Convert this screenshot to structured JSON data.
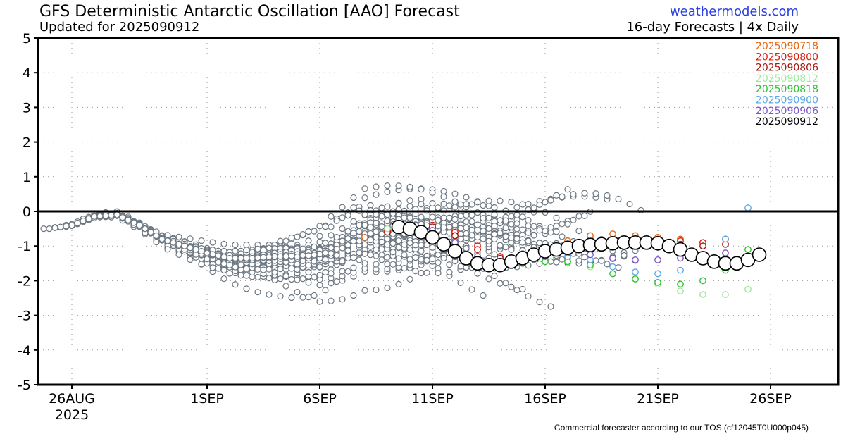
{
  "header": {
    "title": "GFS Deterministic Antarctic Oscillation [AAO] Forecast",
    "subtitle": "Updated for 2025090912",
    "site": "weathermodels.com",
    "cadence": "16-day Forecasts | 4x Daily"
  },
  "footer": "Commercial forecaster according to our TOS (cf12045T0U000p045)",
  "colors": {
    "older_runs": "#6b7680",
    "axis": "#000000",
    "grid": "#9a9a9a"
  },
  "chart_data": {
    "type": "line",
    "title": "GFS Deterministic Antarctic Oscillation [AAO] Forecast",
    "xlabel": "",
    "ylabel": "",
    "ylim": [
      -5,
      5
    ],
    "xlim": [
      "2025-08-24T12",
      "2025-09-29"
    ],
    "grid": true,
    "legend_position": "top-right",
    "y_ticks": [
      "5",
      "4",
      "3",
      "2",
      "1",
      "0",
      "-1",
      "-2",
      "-3",
      "-4",
      "-5"
    ],
    "x_ticks": [
      {
        "label": "26AUG",
        "date": "2025-08-26",
        "sub": "2025"
      },
      {
        "label": "1SEP",
        "date": "2025-09-01",
        "sub": ""
      },
      {
        "label": "6SEP",
        "date": "2025-09-06",
        "sub": ""
      },
      {
        "label": "11SEP",
        "date": "2025-09-11",
        "sub": ""
      },
      {
        "label": "16SEP",
        "date": "2025-09-16",
        "sub": ""
      },
      {
        "label": "21SEP",
        "date": "2025-09-21",
        "sub": ""
      },
      {
        "label": "26SEP",
        "date": "2025-09-26",
        "sub": ""
      }
    ],
    "background_runs_note": "earlier GFS runs drawn in gray",
    "series": [
      {
        "name": "2025090718",
        "color": "#e8650a",
        "x": [
          "2025-09-08",
          "2025-09-09",
          "2025-09-10",
          "2025-09-11",
          "2025-09-12",
          "2025-09-13",
          "2025-09-14",
          "2025-09-15",
          "2025-09-16",
          "2025-09-17",
          "2025-09-18",
          "2025-09-19",
          "2025-09-20",
          "2025-09-21",
          "2025-09-22",
          "2025-09-23"
        ],
        "values": [
          -0.75,
          -0.55,
          -0.5,
          -0.45,
          -0.7,
          -1.1,
          -1.35,
          -1.3,
          -1.1,
          -0.85,
          -0.7,
          -0.65,
          -0.7,
          -0.75,
          -0.8,
          -0.9
        ]
      },
      {
        "name": "2025090800",
        "color": "#dd1f0f",
        "x": [
          "2025-09-09",
          "2025-09-10",
          "2025-09-11",
          "2025-09-12",
          "2025-09-13",
          "2025-09-14",
          "2025-09-15",
          "2025-09-16",
          "2025-09-17",
          "2025-09-18",
          "2025-09-19",
          "2025-09-20",
          "2025-09-21",
          "2025-09-22",
          "2025-09-23",
          "2025-09-24"
        ],
        "values": [
          -0.55,
          -0.45,
          -0.4,
          -0.6,
          -1.0,
          -1.3,
          -1.35,
          -1.2,
          -1.0,
          -0.9,
          -0.85,
          -0.85,
          -0.8,
          -0.85,
          -0.9,
          -0.8
        ]
      },
      {
        "name": "2025090806",
        "color": "#a8150e",
        "x": [
          "2025-09-09",
          "2025-09-10",
          "2025-09-11",
          "2025-09-12",
          "2025-09-13",
          "2025-09-14",
          "2025-09-15",
          "2025-09-16",
          "2025-09-17",
          "2025-09-18",
          "2025-09-19",
          "2025-09-20",
          "2025-09-21",
          "2025-09-22",
          "2025-09-23",
          "2025-09-24"
        ],
        "values": [
          -0.6,
          -0.5,
          -0.45,
          -0.7,
          -1.1,
          -1.35,
          -1.4,
          -1.25,
          -1.05,
          -0.95,
          -0.9,
          -0.9,
          -0.9,
          -0.95,
          -1.0,
          -0.95
        ]
      },
      {
        "name": "2025090812",
        "color": "#9ee89a",
        "x": [
          "2025-09-09",
          "2025-09-10",
          "2025-09-11",
          "2025-09-12",
          "2025-09-13",
          "2025-09-14",
          "2025-09-15",
          "2025-09-16",
          "2025-09-17",
          "2025-09-18",
          "2025-09-19",
          "2025-09-20",
          "2025-09-21",
          "2025-09-22",
          "2025-09-23",
          "2025-09-24",
          "2025-09-25"
        ],
        "values": [
          -0.5,
          -0.45,
          -0.55,
          -0.9,
          -1.3,
          -1.5,
          -1.45,
          -1.35,
          -1.45,
          -1.6,
          -1.8,
          -1.95,
          -2.1,
          -2.3,
          -2.4,
          -2.4,
          -2.25
        ]
      },
      {
        "name": "2025090818",
        "color": "#2fc22f",
        "x": [
          "2025-09-10",
          "2025-09-11",
          "2025-09-12",
          "2025-09-13",
          "2025-09-14",
          "2025-09-15",
          "2025-09-16",
          "2025-09-17",
          "2025-09-18",
          "2025-09-19",
          "2025-09-20",
          "2025-09-21",
          "2025-09-22",
          "2025-09-23",
          "2025-09-24",
          "2025-09-25"
        ],
        "values": [
          -0.5,
          -0.6,
          -1.0,
          -1.35,
          -1.55,
          -1.5,
          -1.45,
          -1.45,
          -1.55,
          -1.8,
          -1.95,
          -2.05,
          -2.1,
          -2.0,
          -1.7,
          -1.1
        ]
      },
      {
        "name": "2025090900",
        "color": "#5aa8ea",
        "x": [
          "2025-09-10",
          "2025-09-11",
          "2025-09-12",
          "2025-09-13",
          "2025-09-14",
          "2025-09-15",
          "2025-09-16",
          "2025-09-17",
          "2025-09-18",
          "2025-09-19",
          "2025-09-20",
          "2025-09-21",
          "2025-09-22",
          "2025-09-23",
          "2025-09-24",
          "2025-09-25"
        ],
        "values": [
          -0.45,
          -0.55,
          -0.9,
          -1.3,
          -1.5,
          -1.45,
          -1.3,
          -1.3,
          -1.4,
          -1.6,
          -1.75,
          -1.8,
          -1.7,
          -1.4,
          -0.8,
          0.1
        ]
      },
      {
        "name": "2025090906",
        "color": "#7a55c8",
        "x": [
          "2025-09-10",
          "2025-09-11",
          "2025-09-12",
          "2025-09-13",
          "2025-09-14",
          "2025-09-15",
          "2025-09-16",
          "2025-09-17",
          "2025-09-18",
          "2025-09-19",
          "2025-09-20",
          "2025-09-21",
          "2025-09-22",
          "2025-09-23",
          "2025-09-24"
        ],
        "values": [
          -0.45,
          -0.55,
          -0.9,
          -1.3,
          -1.5,
          -1.45,
          -1.3,
          -1.2,
          -1.25,
          -1.35,
          -1.4,
          -1.4,
          -1.35,
          -1.3,
          -1.2
        ]
      },
      {
        "name": "2025090912",
        "color": "#000000",
        "x": [
          "2025-09-09T12",
          "2025-09-10",
          "2025-09-10T12",
          "2025-09-11",
          "2025-09-11T12",
          "2025-09-12",
          "2025-09-12T12",
          "2025-09-13",
          "2025-09-13T12",
          "2025-09-14",
          "2025-09-14T12",
          "2025-09-15",
          "2025-09-15T12",
          "2025-09-16",
          "2025-09-16T12",
          "2025-09-17",
          "2025-09-17T12",
          "2025-09-18",
          "2025-09-18T12",
          "2025-09-19",
          "2025-09-19T12",
          "2025-09-20",
          "2025-09-20T12",
          "2025-09-21",
          "2025-09-21T12",
          "2025-09-22",
          "2025-09-22T12",
          "2025-09-23",
          "2025-09-23T12",
          "2025-09-24",
          "2025-09-24T12",
          "2025-09-25",
          "2025-09-25T12"
        ],
        "values": [
          -0.45,
          -0.5,
          -0.6,
          -0.75,
          -0.95,
          -1.15,
          -1.35,
          -1.5,
          -1.55,
          -1.55,
          -1.45,
          -1.35,
          -1.25,
          -1.15,
          -1.1,
          -1.05,
          -1.0,
          -0.97,
          -0.95,
          -0.92,
          -0.9,
          -0.9,
          -0.9,
          -0.92,
          -1.0,
          -1.1,
          -1.25,
          -1.35,
          -1.45,
          -1.5,
          -1.5,
          -1.4,
          -1.25
        ]
      }
    ]
  }
}
